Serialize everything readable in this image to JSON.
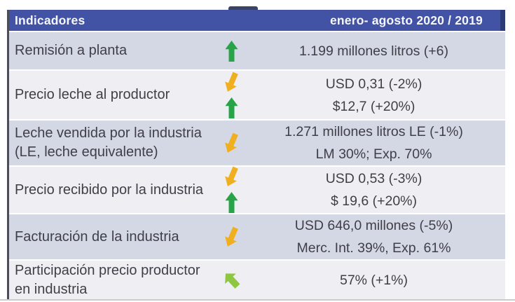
{
  "header": {
    "col1": "Indicadores",
    "col2": "enero- agosto 2020 / 2019"
  },
  "rows": [
    {
      "label_lines": [
        "Remisión a planta"
      ],
      "arrows": [
        "arrow-up-green"
      ],
      "value_lines": [
        "1.199 millones litros (+6)"
      ]
    },
    {
      "label_lines": [
        "Precio leche al productor"
      ],
      "arrows": [
        "arrow-down-yellow",
        "arrow-up-green"
      ],
      "value_lines": [
        "USD 0,31 (-2%)",
        "$12,7 (+20%)"
      ]
    },
    {
      "label_lines": [
        "Leche vendida por la industria",
        "(LE, leche equivalente)"
      ],
      "arrows": [
        "arrow-down-yellow"
      ],
      "value_lines": [
        "1.271 millones litros LE (-1%)",
        "LM 30%; Exp. 70%"
      ]
    },
    {
      "label_lines": [
        "Precio recibido por la industria"
      ],
      "arrows": [
        "arrow-down-yellow",
        "arrow-up-green"
      ],
      "value_lines": [
        "USD 0,53 (-3%)",
        "$ 19,6 (+20%)"
      ]
    },
    {
      "label_lines": [
        "Facturación de la industria"
      ],
      "arrows": [
        "arrow-down-yellow"
      ],
      "value_lines": [
        "USD 646,0 millones (-5%)",
        "Merc. Int. 39%, Exp. 61%"
      ]
    },
    {
      "label_lines": [
        "Participación precio productor",
        "en industria"
      ],
      "arrows": [
        "arrow-up-left-green"
      ],
      "value_lines": [
        "57% (+1%)"
      ]
    }
  ],
  "colors": {
    "header_bg": "#4253a6",
    "header_text": "#f6f7fb",
    "row_alt": "#d4d7e4",
    "row_light": "#efeff3",
    "text": "#3f3f48",
    "border": "#4d4d59",
    "green": "#27a447",
    "yellow": "#f0af1e",
    "light_green": "#8dc63f"
  }
}
